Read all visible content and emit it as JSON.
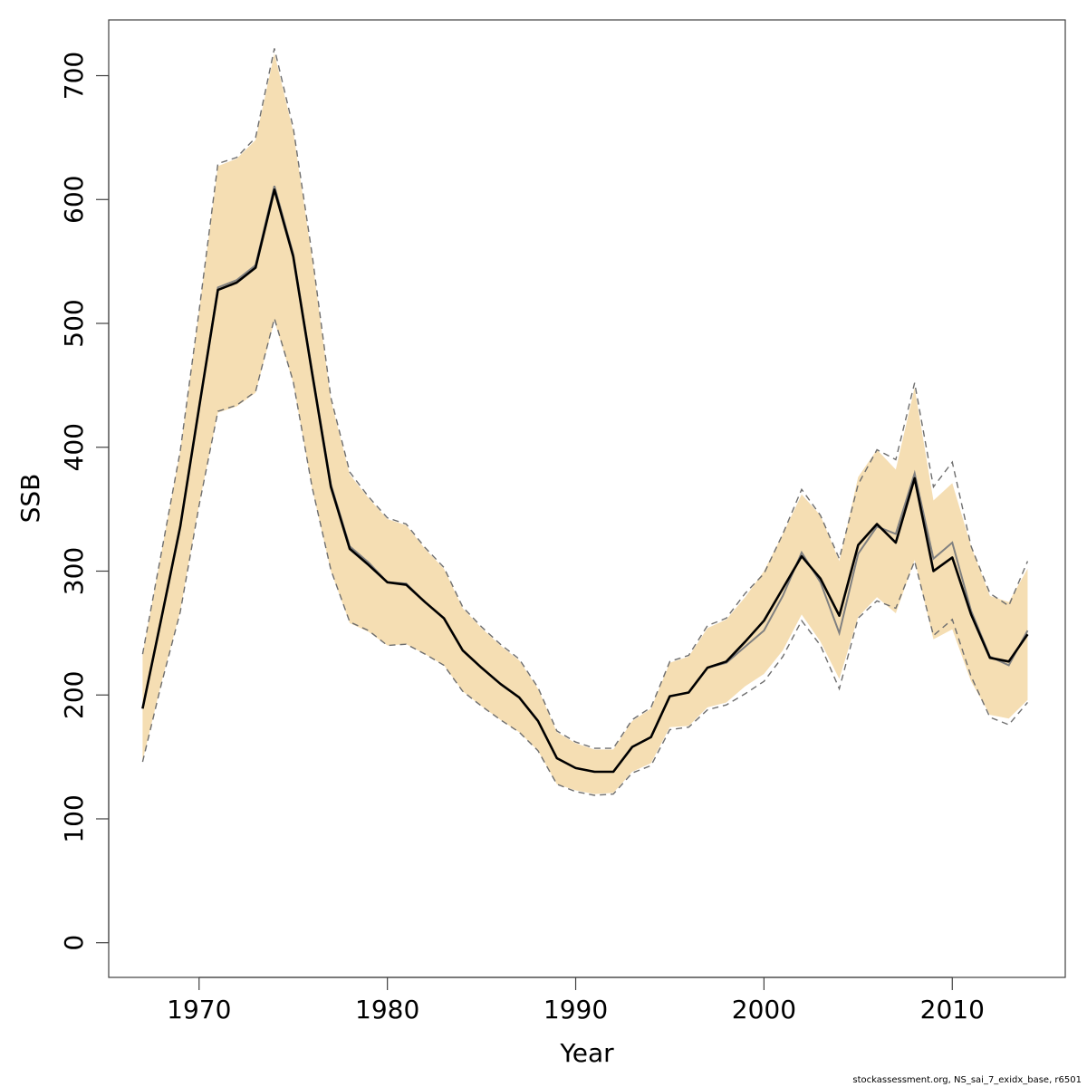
{
  "chart_data": {
    "type": "area",
    "xlabel": "Year",
    "ylabel": "SSB",
    "xlim": [
      1965.2,
      2016.0
    ],
    "ylim": [
      -28,
      745
    ],
    "x_ticks": [
      1970,
      1980,
      1990,
      2000,
      2010
    ],
    "y_ticks": [
      0,
      100,
      200,
      300,
      400,
      500,
      600,
      700
    ],
    "grid": false,
    "x": [
      1967,
      1968,
      1969,
      1970,
      1971,
      1972,
      1973,
      1974,
      1975,
      1976,
      1977,
      1978,
      1979,
      1980,
      1981,
      1982,
      1983,
      1984,
      1985,
      1986,
      1987,
      1988,
      1989,
      1990,
      1991,
      1992,
      1993,
      1994,
      1995,
      1996,
      1997,
      1998,
      1999,
      2000,
      2001,
      2002,
      2003,
      2004,
      2005,
      2006,
      2007,
      2008,
      2009,
      2010,
      2011,
      2012,
      2013,
      2014
    ],
    "series": [
      {
        "role": "estimate",
        "values": [
          189,
          262,
          336,
          432,
          527,
          533,
          545,
          608,
          554,
          460,
          368,
          318,
          305,
          291,
          289,
          275,
          262,
          236,
          222,
          209,
          198,
          179,
          149,
          141,
          138,
          138,
          158,
          166,
          199,
          202,
          222,
          227,
          243,
          260,
          286,
          312,
          294,
          264,
          321,
          338,
          323,
          375,
          300,
          311,
          265,
          230,
          227,
          249
        ]
      },
      {
        "role": "previous-estimate",
        "values": [
          189,
          262,
          336,
          432,
          529,
          535,
          547,
          611,
          556,
          462,
          370,
          320,
          307,
          291,
          290,
          275,
          262,
          236,
          222,
          209,
          198,
          179,
          149,
          141,
          138,
          138,
          158,
          166,
          199,
          202,
          222,
          226,
          239,
          252,
          280,
          315,
          291,
          250,
          314,
          336,
          330,
          379,
          310,
          323,
          268,
          231,
          224,
          252
        ]
      },
      {
        "role": "upper-bound",
        "values": [
          233,
          315,
          397,
          510,
          627,
          633,
          648,
          718,
          655,
          553,
          438,
          378,
          359,
          342,
          337,
          318,
          302,
          270,
          254,
          240,
          228,
          205,
          170,
          161,
          156,
          156,
          179,
          189,
          226,
          231,
          254,
          261,
          279,
          300,
          330,
          362,
          345,
          308,
          376,
          398,
          382,
          448,
          357,
          371,
          320,
          280,
          275,
          302
        ]
      },
      {
        "role": "lower-bound",
        "values": [
          147,
          210,
          268,
          354,
          428,
          433,
          444,
          502,
          452,
          367,
          300,
          258,
          251,
          240,
          241,
          233,
          224,
          203,
          191,
          180,
          170,
          155,
          128,
          123,
          120,
          121,
          138,
          145,
          174,
          175,
          190,
          194,
          207,
          217,
          236,
          265,
          243,
          213,
          263,
          279,
          266,
          309,
          245,
          253,
          211,
          184,
          181,
          196
        ]
      },
      {
        "role": "upper-bound-previous",
        "values": [
          233,
          315,
          397,
          510,
          629,
          634,
          650,
          722,
          658,
          556,
          440,
          380,
          360,
          343,
          338,
          319,
          303,
          271,
          255,
          241,
          229,
          206,
          171,
          162,
          157,
          157,
          180,
          190,
          227,
          232,
          256,
          262,
          282,
          298,
          330,
          366,
          345,
          310,
          370,
          398,
          390,
          452,
          368,
          388,
          320,
          282,
          272,
          308
        ]
      },
      {
        "role": "lower-bound-previous",
        "values": [
          146,
          209,
          267,
          353,
          429,
          434,
          445,
          504,
          453,
          368,
          301,
          259,
          252,
          240,
          241,
          233,
          224,
          203,
          191,
          180,
          170,
          155,
          128,
          122,
          119,
          120,
          137,
          143,
          172,
          174,
          188,
          192,
          201,
          211,
          231,
          260,
          240,
          205,
          262,
          276,
          270,
          308,
          248,
          261,
          215,
          182,
          176,
          194
        ]
      }
    ],
    "colors": {
      "band": "#f5deb3",
      "estimate": "#000000",
      "previous": "#808080",
      "bounds": "#6e6e6e",
      "frame": "#404040"
    }
  },
  "footnote": "stockassessment.org, NS_sai_7_exidx_base, r6501"
}
